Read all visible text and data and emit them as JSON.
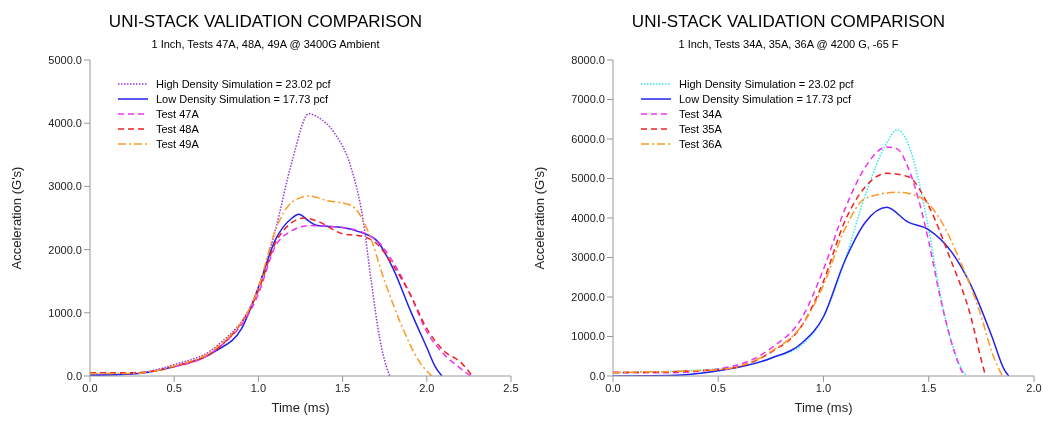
{
  "chart_data": [
    {
      "type": "line",
      "title": "UNI-STACK VALIDATION COMPARISON",
      "subtitle": "1 Inch, Tests 47A, 48A, 49A @ 3400G Ambient",
      "xlabel": "Time (ms)",
      "ylabel": "Acceleration (G's)",
      "xlim": [
        0,
        2.5
      ],
      "ylim": [
        0,
        5000
      ],
      "xticks": [
        {
          "value": 0,
          "label": "0.0"
        },
        {
          "value": 0.5,
          "label": "0.5"
        },
        {
          "value": 1,
          "label": "1.0"
        },
        {
          "value": 1.5,
          "label": "1.5"
        },
        {
          "value": 2,
          "label": "2.0"
        },
        {
          "value": 2.5,
          "label": "2.5"
        }
      ],
      "yticks": [
        {
          "value": 0,
          "label": "0.0"
        },
        {
          "value": 1000,
          "label": "1000.0"
        },
        {
          "value": 2000,
          "label": "2000.0"
        },
        {
          "value": 3000,
          "label": "3000.0"
        },
        {
          "value": 4000,
          "label": "4000.0"
        },
        {
          "value": 5000,
          "label": "5000.0"
        }
      ],
      "legend": "top left",
      "grid": false,
      "marker": "none",
      "series": [
        {
          "name": "High Density Simulation = 23.02 pcf",
          "color": "#9933dd",
          "line_style": "dotted",
          "x": [
            0,
            0.25,
            0.5,
            0.75,
            1.0,
            1.1,
            1.2,
            1.3,
            1.35,
            1.45,
            1.55,
            1.62,
            1.67,
            1.72,
            1.76,
            1.78
          ],
          "values": [
            20,
            40,
            180,
            470,
            1400,
            2300,
            3400,
            4150,
            4100,
            3850,
            3300,
            2500,
            1500,
            600,
            150,
            0
          ]
        },
        {
          "name": "Low Density Simulation = 17.73 pcf",
          "color": "#2222ee",
          "line_style": "solid",
          "x": [
            0,
            0.25,
            0.5,
            0.75,
            0.9,
            1.0,
            1.1,
            1.2,
            1.24,
            1.3,
            1.35,
            1.5,
            1.6,
            1.7,
            1.8,
            1.9,
            2.0,
            2.05,
            2.09
          ],
          "values": [
            10,
            30,
            150,
            400,
            750,
            1400,
            2150,
            2500,
            2560,
            2450,
            2380,
            2350,
            2280,
            2150,
            1700,
            1050,
            450,
            150,
            0
          ]
        },
        {
          "name": "Test 47A",
          "color": "#ee33ee",
          "line_style": "dashed",
          "x": [
            0.5,
            0.75,
            1.0,
            1.1,
            1.2,
            1.3,
            1.5,
            1.7,
            1.8,
            1.9,
            2.0,
            2.1,
            2.2,
            2.26
          ],
          "values": [
            150,
            420,
            1300,
            2050,
            2300,
            2380,
            2350,
            2150,
            1800,
            1300,
            700,
            350,
            120,
            0
          ]
        },
        {
          "name": "Test 48A",
          "color": "#ee2222",
          "line_style": "dashed",
          "x": [
            0,
            0.25,
            0.5,
            0.75,
            1.0,
            1.1,
            1.2,
            1.27,
            1.35,
            1.5,
            1.6,
            1.7,
            1.8,
            1.9,
            2.0,
            2.1,
            2.2,
            2.27
          ],
          "values": [
            50,
            50,
            150,
            420,
            1350,
            2100,
            2430,
            2500,
            2450,
            2250,
            2220,
            2100,
            1750,
            1300,
            750,
            400,
            220,
            0
          ]
        },
        {
          "name": "Test 49A",
          "color": "#ff9922",
          "line_style": "dashdot",
          "x": [
            0,
            0.25,
            0.5,
            0.75,
            1.0,
            1.1,
            1.2,
            1.3,
            1.4,
            1.55,
            1.65,
            1.75,
            1.85,
            1.95,
            2.03
          ],
          "values": [
            40,
            40,
            160,
            450,
            1400,
            2300,
            2750,
            2850,
            2780,
            2700,
            2300,
            1500,
            800,
            250,
            0
          ]
        }
      ]
    },
    {
      "type": "line",
      "title": "UNI-STACK VALIDATION COMPARISON",
      "subtitle": "1 Inch, Tests 34A, 35A, 36A @ 4200 G, -65 F",
      "xlabel": "Time (ms)",
      "ylabel": "Acceleration (G's)",
      "xlim": [
        0,
        2.0
      ],
      "ylim": [
        0,
        8000
      ],
      "xticks": [
        {
          "value": 0,
          "label": "0.0"
        },
        {
          "value": 0.5,
          "label": "0.5"
        },
        {
          "value": 1,
          "label": "1.0"
        },
        {
          "value": 1.5,
          "label": "1.5"
        },
        {
          "value": 2,
          "label": "2.0"
        }
      ],
      "yticks": [
        {
          "value": 0,
          "label": "0.0"
        },
        {
          "value": 1000,
          "label": "1000.0"
        },
        {
          "value": 2000,
          "label": "2000.0"
        },
        {
          "value": 3000,
          "label": "3000.0"
        },
        {
          "value": 4000,
          "label": "4000.0"
        },
        {
          "value": 5000,
          "label": "5000.0"
        },
        {
          "value": 6000,
          "label": "6000.0"
        },
        {
          "value": 7000,
          "label": "7000.0"
        },
        {
          "value": 8000,
          "label": "8000.0"
        }
      ],
      "legend": "top left",
      "grid": false,
      "marker": "none",
      "series": [
        {
          "name": "High Density Simulation = 23.02 pcf",
          "color": "#33e8e8",
          "line_style": "dotted",
          "x": [
            0,
            0.5,
            0.75,
            0.9,
            1.0,
            1.1,
            1.2,
            1.3,
            1.35,
            1.4,
            1.45,
            1.5,
            1.55,
            1.6,
            1.65,
            1.68
          ],
          "values": [
            80,
            180,
            450,
            800,
            1500,
            2900,
            4600,
            5900,
            6230,
            5900,
            5000,
            3700,
            2200,
            1000,
            250,
            0
          ]
        },
        {
          "name": "Low Density Simulation = 17.73 pcf",
          "color": "#2222ee",
          "line_style": "solid",
          "x": [
            0,
            0.3,
            0.5,
            0.75,
            0.9,
            1.0,
            1.1,
            1.2,
            1.3,
            1.4,
            1.5,
            1.6,
            1.7,
            1.8,
            1.86,
            1.88
          ],
          "values": [
            0,
            20,
            130,
            450,
            850,
            1500,
            2900,
            3900,
            4270,
            3900,
            3700,
            3200,
            2300,
            1000,
            150,
            0
          ]
        },
        {
          "name": "Test 34A",
          "color": "#ee33ee",
          "line_style": "dashed",
          "x": [
            0,
            0.25,
            0.5,
            0.75,
            0.9,
            1.0,
            1.1,
            1.2,
            1.3,
            1.35,
            1.4,
            1.45,
            1.5,
            1.55,
            1.6,
            1.65,
            1.67
          ],
          "values": [
            100,
            80,
            180,
            700,
            1500,
            2700,
            4200,
            5300,
            5800,
            5750,
            5300,
            4500,
            3400,
            2100,
            1000,
            200,
            0
          ]
        },
        {
          "name": "Test 35A",
          "color": "#ee2222",
          "line_style": "dashed",
          "x": [
            0,
            0.5,
            0.75,
            0.9,
            1.0,
            1.1,
            1.2,
            1.3,
            1.4,
            1.5,
            1.6,
            1.7,
            1.75,
            1.77
          ],
          "values": [
            80,
            160,
            600,
            1300,
            2400,
            3900,
            4800,
            5130,
            5050,
            4300,
            3000,
            1500,
            400,
            0
          ]
        },
        {
          "name": "Test 36A",
          "color": "#ff9922",
          "line_style": "dashdot",
          "x": [
            0,
            0.5,
            0.75,
            0.9,
            1.0,
            1.1,
            1.2,
            1.35,
            1.45,
            1.55,
            1.65,
            1.75,
            1.8,
            1.85
          ],
          "values": [
            90,
            160,
            620,
            1300,
            2300,
            3700,
            4500,
            4650,
            4550,
            4000,
            2900,
            1500,
            600,
            0
          ]
        }
      ]
    }
  ]
}
